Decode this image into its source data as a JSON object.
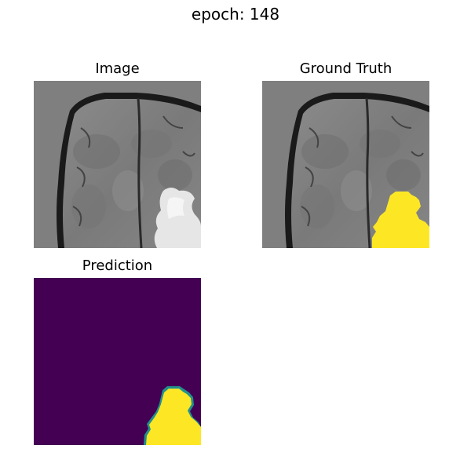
{
  "figure": {
    "suptitle": "epoch: 148"
  },
  "panels": [
    {
      "title": "Image",
      "kind": "mri-scan"
    },
    {
      "title": "Ground Truth",
      "kind": "mri-scan-with-mask-overlay"
    },
    {
      "title": "Prediction",
      "kind": "predicted-mask"
    }
  ],
  "colors": {
    "scan_background": "#7f7f7f",
    "mask_yellow": "#fde725",
    "prediction_background": "#440154",
    "prediction_edge": "#21918c"
  }
}
